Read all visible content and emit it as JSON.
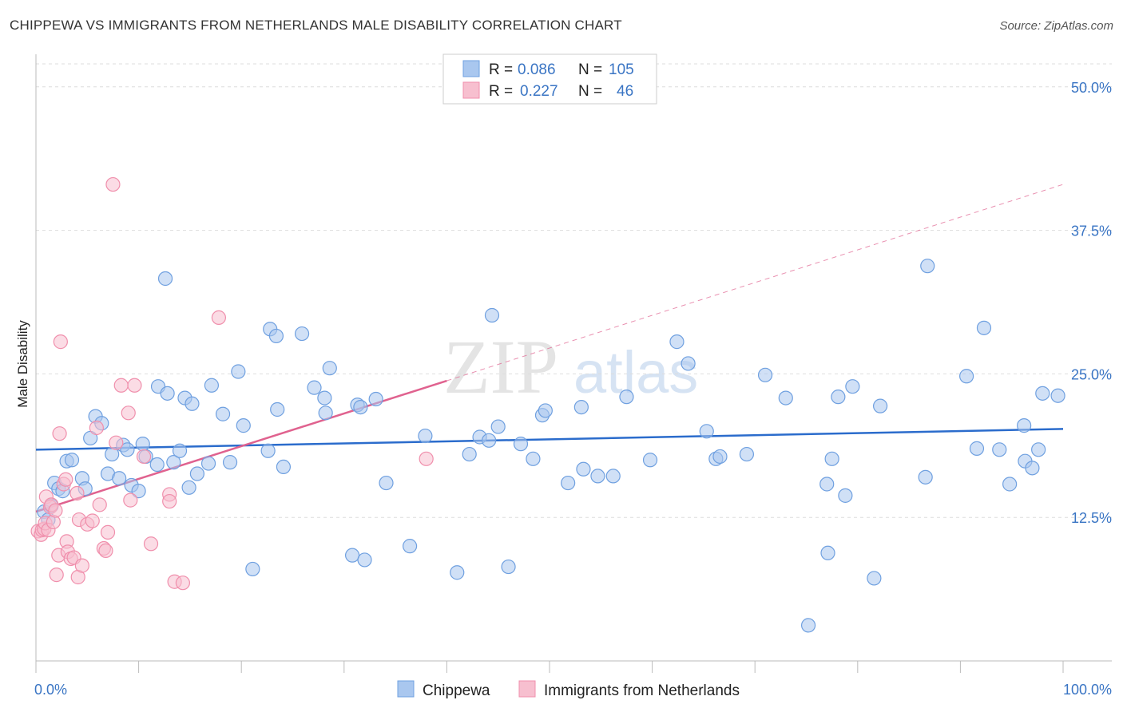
{
  "title": "CHIPPEWA VS IMMIGRANTS FROM NETHERLANDS MALE DISABILITY CORRELATION CHART",
  "source": "Source: ZipAtlas.com",
  "watermark": {
    "zip": "ZIP",
    "atlas": "atlas"
  },
  "chart_data": {
    "type": "scatter",
    "title": "CHIPPEWA VS IMMIGRANTS FROM NETHERLANDS MALE DISABILITY CORRELATION CHART",
    "xlabel": "",
    "ylabel": "Male Disability",
    "xlim": [
      0,
      100
    ],
    "ylim": [
      0,
      52
    ],
    "x_tick_labels": [
      "0.0%",
      "100.0%"
    ],
    "y_ticks": [
      12.5,
      25.0,
      37.5,
      50.0
    ],
    "y_tick_labels": [
      "12.5%",
      "25.0%",
      "37.5%",
      "50.0%"
    ],
    "grid": true,
    "legend_position": "top-center",
    "stats": [
      {
        "series": "Chippewa",
        "r_label": "R =",
        "r_value": "0.086",
        "n_label": "N =",
        "n_value": "105"
      },
      {
        "series": "Immigrants from Netherlands",
        "r_label": "R =",
        "r_value": "0.227",
        "n_label": "N =",
        "n_value": "46"
      }
    ],
    "series": [
      {
        "name": "Chippewa",
        "color": "#6fa0e0",
        "fill": "#a9c7ef",
        "trend_color": "#2b6ccc",
        "trend": {
          "x0": 0,
          "y0": 18.4,
          "x1": 100,
          "y1": 20.2
        },
        "points": [
          [
            0.8,
            13.0
          ],
          [
            1.2,
            12.3
          ],
          [
            1.5,
            13.5
          ],
          [
            1.8,
            15.5
          ],
          [
            2.2,
            15.0
          ],
          [
            2.6,
            14.8
          ],
          [
            3.0,
            17.4
          ],
          [
            3.5,
            17.5
          ],
          [
            4.5,
            15.9
          ],
          [
            4.8,
            15.0
          ],
          [
            5.3,
            19.4
          ],
          [
            5.8,
            21.3
          ],
          [
            6.4,
            20.7
          ],
          [
            7.0,
            16.3
          ],
          [
            7.4,
            18.0
          ],
          [
            8.1,
            15.9
          ],
          [
            8.5,
            18.8
          ],
          [
            8.9,
            18.4
          ],
          [
            9.3,
            15.3
          ],
          [
            10.0,
            14.8
          ],
          [
            10.4,
            18.9
          ],
          [
            10.7,
            17.8
          ],
          [
            11.8,
            17.1
          ],
          [
            11.9,
            23.9
          ],
          [
            12.6,
            33.3
          ],
          [
            12.8,
            23.3
          ],
          [
            13.4,
            17.3
          ],
          [
            14.0,
            18.3
          ],
          [
            14.5,
            22.9
          ],
          [
            14.9,
            15.1
          ],
          [
            15.2,
            22.4
          ],
          [
            15.7,
            16.3
          ],
          [
            16.8,
            17.2
          ],
          [
            17.1,
            24.0
          ],
          [
            18.2,
            21.5
          ],
          [
            18.9,
            17.3
          ],
          [
            19.7,
            25.2
          ],
          [
            20.2,
            20.5
          ],
          [
            21.1,
            8.0
          ],
          [
            22.6,
            18.3
          ],
          [
            22.8,
            28.9
          ],
          [
            23.4,
            28.3
          ],
          [
            23.5,
            21.9
          ],
          [
            24.1,
            16.9
          ],
          [
            25.9,
            28.5
          ],
          [
            27.1,
            23.8
          ],
          [
            28.1,
            22.9
          ],
          [
            28.2,
            21.6
          ],
          [
            28.6,
            25.5
          ],
          [
            30.8,
            9.2
          ],
          [
            31.3,
            22.3
          ],
          [
            31.6,
            22.1
          ],
          [
            32.0,
            8.8
          ],
          [
            33.1,
            22.8
          ],
          [
            34.1,
            15.5
          ],
          [
            36.4,
            10.0
          ],
          [
            37.9,
            19.6
          ],
          [
            41.0,
            7.7
          ],
          [
            42.2,
            18.0
          ],
          [
            43.2,
            19.5
          ],
          [
            44.1,
            19.2
          ],
          [
            44.4,
            30.1
          ],
          [
            45.0,
            20.4
          ],
          [
            46.0,
            8.2
          ],
          [
            47.2,
            18.9
          ],
          [
            48.4,
            17.6
          ],
          [
            49.3,
            21.4
          ],
          [
            49.6,
            21.8
          ],
          [
            51.8,
            15.5
          ],
          [
            53.1,
            22.1
          ],
          [
            53.3,
            16.7
          ],
          [
            54.7,
            16.1
          ],
          [
            56.2,
            16.1
          ],
          [
            57.5,
            23.0
          ],
          [
            59.8,
            17.5
          ],
          [
            62.4,
            27.8
          ],
          [
            63.5,
            25.9
          ],
          [
            65.3,
            20.0
          ],
          [
            66.2,
            17.6
          ],
          [
            66.6,
            17.8
          ],
          [
            69.2,
            18.0
          ],
          [
            71.0,
            24.9
          ],
          [
            73.0,
            22.9
          ],
          [
            75.2,
            3.1
          ],
          [
            77.0,
            15.4
          ],
          [
            77.1,
            9.4
          ],
          [
            77.5,
            17.6
          ],
          [
            78.1,
            23.0
          ],
          [
            78.8,
            14.4
          ],
          [
            79.5,
            23.9
          ],
          [
            81.6,
            7.2
          ],
          [
            82.2,
            22.2
          ],
          [
            86.6,
            16.0
          ],
          [
            86.8,
            34.4
          ],
          [
            90.6,
            24.8
          ],
          [
            91.6,
            18.5
          ],
          [
            92.3,
            29.0
          ],
          [
            93.8,
            18.4
          ],
          [
            94.8,
            15.4
          ],
          [
            96.2,
            20.5
          ],
          [
            96.3,
            17.4
          ],
          [
            97.0,
            16.8
          ],
          [
            97.6,
            18.4
          ],
          [
            98.0,
            23.3
          ],
          [
            99.5,
            23.1
          ]
        ]
      },
      {
        "name": "Immigrants from Netherlands",
        "color": "#f08fac",
        "fill": "#f7bfcf",
        "trend_color": "#e0628f",
        "trend": {
          "x0": 0,
          "y0": 13.0,
          "x1": 40,
          "y1": 24.4
        },
        "trend_ext": {
          "x0": 40,
          "y0": 24.4,
          "x1": 100,
          "y1": 41.5
        },
        "points": [
          [
            0.2,
            11.3
          ],
          [
            0.5,
            11.0
          ],
          [
            0.6,
            11.4
          ],
          [
            0.8,
            11.5
          ],
          [
            0.9,
            12.0
          ],
          [
            1.0,
            14.3
          ],
          [
            1.2,
            11.4
          ],
          [
            1.4,
            13.4
          ],
          [
            1.5,
            13.6
          ],
          [
            1.7,
            12.1
          ],
          [
            1.9,
            13.1
          ],
          [
            2.0,
            7.5
          ],
          [
            2.2,
            9.2
          ],
          [
            2.3,
            19.8
          ],
          [
            2.4,
            27.8
          ],
          [
            2.7,
            15.4
          ],
          [
            2.9,
            15.8
          ],
          [
            3.0,
            10.4
          ],
          [
            3.1,
            9.5
          ],
          [
            3.4,
            8.9
          ],
          [
            3.7,
            9.0
          ],
          [
            4.0,
            14.6
          ],
          [
            4.1,
            7.3
          ],
          [
            4.2,
            12.3
          ],
          [
            4.5,
            8.3
          ],
          [
            5.0,
            11.9
          ],
          [
            5.5,
            12.2
          ],
          [
            5.9,
            20.3
          ],
          [
            6.2,
            13.6
          ],
          [
            6.6,
            9.8
          ],
          [
            6.8,
            9.6
          ],
          [
            7.0,
            11.2
          ],
          [
            7.5,
            41.5
          ],
          [
            7.8,
            19.0
          ],
          [
            8.3,
            24.0
          ],
          [
            9.0,
            21.6
          ],
          [
            9.2,
            14.0
          ],
          [
            9.6,
            24.0
          ],
          [
            11.2,
            10.2
          ],
          [
            13.0,
            14.5
          ],
          [
            13.0,
            13.9
          ],
          [
            13.5,
            6.9
          ],
          [
            14.3,
            6.8
          ],
          [
            17.8,
            29.9
          ],
          [
            38.0,
            17.6
          ],
          [
            10.5,
            17.8
          ]
        ]
      }
    ]
  },
  "legend": {
    "items": [
      "Chippewa",
      "Immigrants from Netherlands"
    ]
  }
}
